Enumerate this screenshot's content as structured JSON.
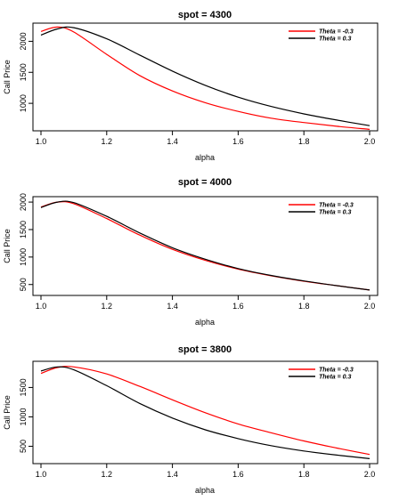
{
  "chart_data": [
    {
      "type": "line",
      "title": "spot = 4300",
      "xlabel": "alpha",
      "ylabel": "Call Price",
      "xlim": [
        1.0,
        2.0
      ],
      "ylim": [
        600,
        2250
      ],
      "x_ticks": [
        "1.0",
        "1.2",
        "1.4",
        "1.6",
        "1.8",
        "2.0"
      ],
      "y_ticks": [
        "1000",
        "1500",
        "2000"
      ],
      "legend_position": "top-right",
      "grid": false,
      "x": [
        1.0,
        1.05,
        1.1,
        1.2,
        1.3,
        1.4,
        1.5,
        1.6,
        1.7,
        1.8,
        1.9,
        2.0
      ],
      "series": [
        {
          "name": "Theta = -0.3",
          "color": "#ff0000",
          "values": [
            2160,
            2230,
            2150,
            1790,
            1450,
            1200,
            1010,
            870,
            760,
            690,
            630,
            580
          ]
        },
        {
          "name": "Theta = 0.3",
          "color": "#000000",
          "values": [
            2100,
            2200,
            2220,
            2040,
            1780,
            1520,
            1290,
            1100,
            950,
            830,
            730,
            640
          ]
        }
      ]
    },
    {
      "type": "line",
      "title": "spot = 4000",
      "xlabel": "alpha",
      "ylabel": "Call Price",
      "xlim": [
        1.0,
        2.0
      ],
      "ylim": [
        350,
        2050
      ],
      "x_ticks": [
        "1.0",
        "1.2",
        "1.4",
        "1.6",
        "1.8",
        "2.0"
      ],
      "y_ticks": [
        "500",
        "1000",
        "1500",
        "2000"
      ],
      "legend_position": "top-right",
      "grid": false,
      "x": [
        1.0,
        1.05,
        1.1,
        1.2,
        1.3,
        1.4,
        1.5,
        1.6,
        1.7,
        1.8,
        1.9,
        2.0
      ],
      "series": [
        {
          "name": "Theta = -0.3",
          "color": "#ff0000",
          "values": [
            1910,
            2000,
            1970,
            1700,
            1400,
            1140,
            940,
            780,
            660,
            560,
            480,
            400
          ]
        },
        {
          "name": "Theta = 0.3",
          "color": "#000000",
          "values": [
            1900,
            2000,
            1990,
            1740,
            1440,
            1170,
            960,
            790,
            665,
            565,
            480,
            400
          ]
        }
      ]
    },
    {
      "type": "line",
      "title": "spot = 3800",
      "xlabel": "alpha",
      "ylabel": "Call Price",
      "xlim": [
        1.0,
        2.0
      ],
      "ylim": [
        250,
        1900
      ],
      "x_ticks": [
        "1.0",
        "1.2",
        "1.4",
        "1.6",
        "1.8",
        "2.0"
      ],
      "y_ticks": [
        "500",
        "1000",
        "1500"
      ],
      "legend_position": "top-right",
      "grid": false,
      "x": [
        1.0,
        1.05,
        1.1,
        1.2,
        1.3,
        1.4,
        1.5,
        1.6,
        1.7,
        1.8,
        1.9,
        2.0
      ],
      "series": [
        {
          "name": "Theta = -0.3",
          "color": "#ff0000",
          "values": [
            1740,
            1840,
            1850,
            1730,
            1520,
            1290,
            1070,
            880,
            730,
            590,
            470,
            360
          ]
        },
        {
          "name": "Theta = 0.3",
          "color": "#000000",
          "values": [
            1780,
            1850,
            1800,
            1530,
            1230,
            980,
            780,
            630,
            510,
            420,
            350,
            290
          ]
        }
      ]
    }
  ]
}
